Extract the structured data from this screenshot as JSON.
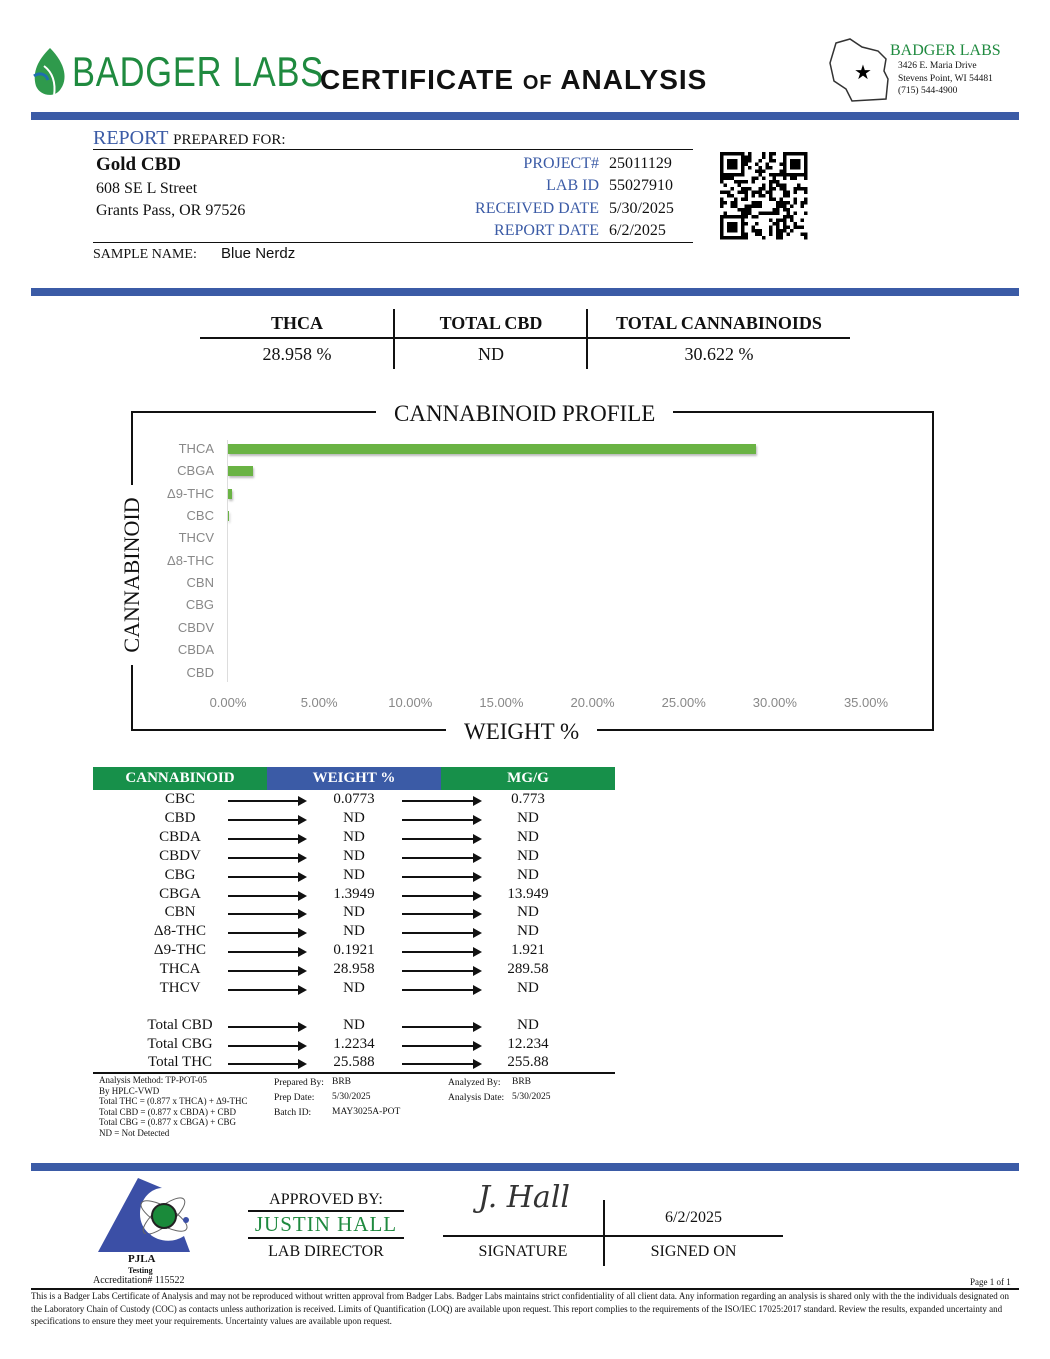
{
  "header": {
    "logo_text": "BADGER LABS",
    "title_main_1": "CERTIFICATE ",
    "title_of": "OF",
    "title_main_2": " ANALYSIS",
    "lab_name": "BADGER LABS",
    "address1": "3426 E. Maria Drive",
    "address2": "Stevens Point, WI 54481",
    "phone": "(715) 544-4900"
  },
  "report": {
    "report_word": "REPORT",
    "prepared_for": "PREPARED FOR:",
    "client_name": "Gold CBD",
    "street": "608 SE L Street",
    "city": "Grants Pass, OR 97526",
    "project_label": "PROJECT#",
    "project": "25011129",
    "lab_id_label": "LAB ID",
    "lab_id": "55027910",
    "received_label": "RECEIVED DATE",
    "received": "5/30/2025",
    "report_date_label": "REPORT DATE",
    "report_date": "6/2/2025",
    "sample_label": "SAMPLE NAME:",
    "sample_name": "Blue Nerdz"
  },
  "summary": {
    "thca_label": "THCA",
    "thca": "28.958 %",
    "cbd_label": "TOTAL CBD",
    "cbd": "ND",
    "total_label": "TOTAL CANNABINOIDS",
    "total": "30.622 %"
  },
  "colors": {
    "brand_green": "#1f8a3f",
    "brand_blue": "#3b5ba6",
    "bar_green": "#6ab344",
    "table_green": "#17904a"
  },
  "chart_data": {
    "type": "bar",
    "orientation": "horizontal",
    "title": "CANNABINOID PROFILE",
    "xlabel": "WEIGHT %",
    "ylabel": "CANNABINOID",
    "categories": [
      "THCA",
      "CBGA",
      "Δ9-THC",
      "CBC",
      "THCV",
      "Δ8-THC",
      "CBN",
      "CBG",
      "CBDV",
      "CBDA",
      "CBD"
    ],
    "values": [
      28.958,
      1.3949,
      0.1921,
      0.0773,
      0,
      0,
      0,
      0,
      0,
      0,
      0
    ],
    "xlim": [
      0,
      35
    ],
    "xticks": [
      "0.00%",
      "5.00%",
      "10.00%",
      "15.00%",
      "20.00%",
      "25.00%",
      "30.00%",
      "35.00%"
    ],
    "grid": false
  },
  "table": {
    "headers": [
      "CANNABINOID",
      "WEIGHT %",
      "MG/G"
    ],
    "rows": [
      [
        "CBC",
        "0.0773",
        "0.773"
      ],
      [
        "CBD",
        "ND",
        "ND"
      ],
      [
        "CBDA",
        "ND",
        "ND"
      ],
      [
        "CBDV",
        "ND",
        "ND"
      ],
      [
        "CBG",
        "ND",
        "ND"
      ],
      [
        "CBGA",
        "1.3949",
        "13.949"
      ],
      [
        "CBN",
        "ND",
        "ND"
      ],
      [
        "Δ8-THC",
        "ND",
        "ND"
      ],
      [
        "Δ9-THC",
        "0.1921",
        "1.921"
      ],
      [
        "THCA",
        "28.958",
        "289.58"
      ],
      [
        "THCV",
        "ND",
        "ND"
      ]
    ],
    "totals": [
      [
        "Total CBD",
        "ND",
        "ND"
      ],
      [
        "Total CBG",
        "1.2234",
        "12.234"
      ],
      [
        "Total THC",
        "25.588",
        "255.88"
      ]
    ]
  },
  "method": {
    "lines": [
      "Analysis Method: TP-POT-05",
      "By HPLC-VWD",
      "Total THC = (0.877 x  THCA) + Δ9-THC",
      "Total CBD = (0.877 x  CBDA) + CBD",
      "Total CBG = (0.877 x  CBGA) + CBG",
      "ND = Not Detected"
    ],
    "prepared_by_label": "Prepared By:",
    "prepared_by": "BRB",
    "prep_date_label": "Prep Date:",
    "prep_date": "5/30/2025",
    "batch_label": "Batch ID:",
    "batch": "MAY3025A-POT",
    "analyzed_by_label": "Analyzed By:",
    "analyzed_by": "BRB",
    "analysis_date_label": "Analysis Date:",
    "analysis_date": "5/30/2025"
  },
  "approval": {
    "pjla": "PJLA",
    "testing": "Testing",
    "accreditation": "Accreditation# 115522",
    "approved_by": "APPROVED BY:",
    "name": "JUSTIN HALL",
    "role": "LAB DIRECTOR",
    "signature_text": "J. Hall",
    "signature_label": "SIGNATURE",
    "signed_date": "6/2/2025",
    "signed_on_label": "SIGNED ON"
  },
  "footer": {
    "page": "Page 1 of 1",
    "disclaimer": "This is a Badger Labs Certificate of Analysis and may not be reproduced without written approval from Badger Labs. Badger Labs maintains strict confidentiality of all client data. Any information regarding an analysis is shared only with the the individuals designated on the Laboratory Chain of Custody (COC) as contacts unless authorization is received. Limits of Quantification (LOQ) are available upon request. This report complies to the requirements of the ISO/IEC 17025:2017 standard. Review the results, expanded uncertainty and specifications to ensure they meet your requirements. Uncertainty values are available upon request."
  }
}
